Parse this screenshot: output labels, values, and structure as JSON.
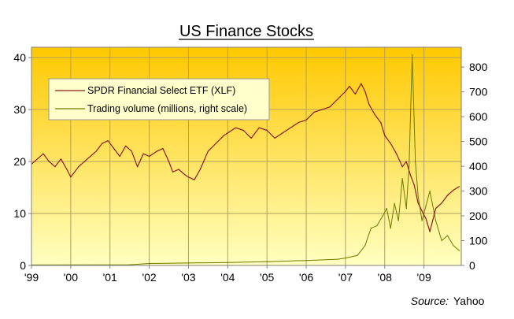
{
  "chart_data": {
    "type": "line",
    "title": "US Finance Stocks",
    "source_label": "Source:",
    "source_value": "Yahoo",
    "x_tick_labels": [
      "'99",
      "'00",
      "'01",
      "'02",
      "'03",
      "'04",
      "'05",
      "'06",
      "'07",
      "'08",
      "'09"
    ],
    "x_range": [
      1999.0,
      2009.95
    ],
    "y_left": {
      "range": [
        0,
        42
      ],
      "ticks": [
        0,
        10,
        20,
        30,
        40
      ]
    },
    "y_right": {
      "range": [
        0,
        880
      ],
      "ticks": [
        0,
        100,
        200,
        300,
        400,
        500,
        600,
        700,
        800
      ]
    },
    "grid": true,
    "legend_position": "top-left",
    "colors": {
      "price": "#8B1A1A",
      "volume": "#6B7A00",
      "grid": "#B0A060",
      "plot_top": "#FFC800",
      "plot_bottom": "#FFFFC0"
    },
    "series": [
      {
        "name": "SPDR Financial Select ETF (XLF)",
        "axis": "left",
        "x": [
          1999.0,
          1999.15,
          1999.3,
          1999.45,
          1999.6,
          1999.75,
          1999.9,
          2000.0,
          2000.2,
          2000.35,
          2000.5,
          2000.65,
          2000.8,
          2000.95,
          2001.1,
          2001.25,
          2001.4,
          2001.55,
          2001.7,
          2001.85,
          2002.0,
          2002.2,
          2002.35,
          2002.5,
          2002.6,
          2002.75,
          2002.9,
          2003.0,
          2003.15,
          2003.3,
          2003.5,
          2003.7,
          2003.9,
          2004.0,
          2004.2,
          2004.4,
          2004.6,
          2004.8,
          2005.0,
          2005.2,
          2005.4,
          2005.6,
          2005.8,
          2006.0,
          2006.2,
          2006.4,
          2006.6,
          2006.8,
          2007.0,
          2007.1,
          2007.25,
          2007.4,
          2007.5,
          2007.6,
          2007.75,
          2007.9,
          2008.0,
          2008.15,
          2008.3,
          2008.45,
          2008.55,
          2008.65,
          2008.75,
          2008.85,
          2008.95,
          2009.05,
          2009.15,
          2009.3,
          2009.45,
          2009.6,
          2009.75,
          2009.9
        ],
        "values": [
          19.5,
          20.5,
          21.5,
          20.0,
          19.0,
          20.5,
          18.5,
          17.0,
          19.0,
          20.0,
          21.0,
          22.0,
          23.5,
          24.0,
          22.5,
          21.0,
          23.0,
          22.0,
          19.0,
          21.5,
          21.0,
          22.0,
          22.5,
          20.0,
          18.0,
          18.5,
          17.5,
          17.0,
          16.5,
          18.5,
          22.0,
          23.5,
          25.0,
          25.5,
          26.5,
          26.0,
          24.5,
          26.5,
          26.0,
          24.5,
          25.5,
          26.5,
          27.5,
          28.0,
          29.5,
          30.0,
          30.5,
          32.0,
          33.5,
          34.5,
          33.0,
          35.0,
          33.5,
          31.0,
          29.0,
          27.5,
          25.0,
          23.5,
          21.5,
          19.0,
          20.0,
          17.5,
          15.5,
          12.0,
          10.5,
          9.0,
          6.5,
          11.0,
          12.0,
          13.5,
          14.5,
          15.2
        ]
      },
      {
        "name": "Trading volume (millions, right scale)",
        "axis": "right",
        "x": [
          1999.0,
          2001.5,
          2002.0,
          2003.0,
          2004.0,
          2005.0,
          2006.0,
          2006.8,
          2007.0,
          2007.3,
          2007.5,
          2007.65,
          2007.8,
          2007.95,
          2008.05,
          2008.15,
          2008.25,
          2008.35,
          2008.45,
          2008.55,
          2008.62,
          2008.7,
          2008.78,
          2008.85,
          2008.95,
          2009.05,
          2009.15,
          2009.3,
          2009.45,
          2009.6,
          2009.75,
          2009.9
        ],
        "values": [
          2,
          3,
          8,
          10,
          12,
          15,
          20,
          25,
          30,
          40,
          80,
          150,
          160,
          200,
          230,
          150,
          250,
          180,
          350,
          230,
          400,
          850,
          420,
          280,
          180,
          240,
          300,
          180,
          100,
          120,
          80,
          60
        ]
      }
    ]
  }
}
